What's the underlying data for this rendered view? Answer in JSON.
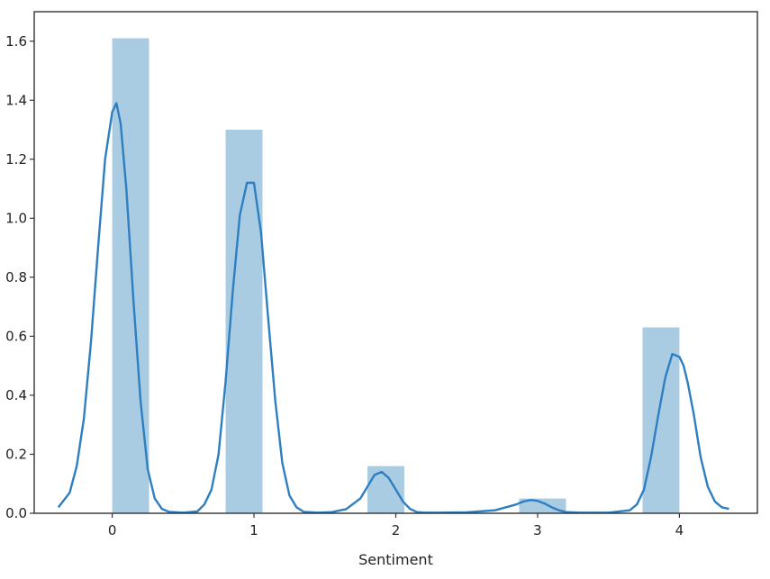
{
  "chart_data": {
    "type": "bar",
    "subtype": "histogram-with-kde",
    "title": "",
    "xlabel": "Sentiment",
    "ylabel": "",
    "xlim": [
      -0.55,
      4.55
    ],
    "ylim": [
      0,
      1.7
    ],
    "grid": false,
    "legend": "none",
    "x_ticks": [
      0,
      1,
      2,
      3,
      4
    ],
    "x_tick_labels": [
      "0",
      "1",
      "2",
      "3",
      "4"
    ],
    "y_ticks": [
      0.0,
      0.2,
      0.4,
      0.6,
      0.8,
      1.0,
      1.2,
      1.4,
      1.6
    ],
    "y_tick_labels": [
      "0.0",
      "0.2",
      "0.4",
      "0.6",
      "0.8",
      "1.0",
      "1.2",
      "1.4",
      "1.6"
    ],
    "bars": [
      {
        "x0": 0.0,
        "x1": 0.26,
        "value": 1.61
      },
      {
        "x0": 0.8,
        "x1": 1.06,
        "value": 1.3
      },
      {
        "x0": 1.8,
        "x1": 2.06,
        "value": 0.16
      },
      {
        "x0": 2.87,
        "x1": 3.2,
        "value": 0.05
      },
      {
        "x0": 3.74,
        "x1": 4.0,
        "value": 0.63
      }
    ],
    "kde": {
      "x": [
        -0.38,
        -0.3,
        -0.25,
        -0.2,
        -0.15,
        -0.1,
        -0.05,
        0.0,
        0.03,
        0.06,
        0.1,
        0.15,
        0.2,
        0.25,
        0.3,
        0.35,
        0.4,
        0.5,
        0.6,
        0.65,
        0.7,
        0.75,
        0.8,
        0.85,
        0.9,
        0.95,
        1.0,
        1.05,
        1.1,
        1.15,
        1.2,
        1.25,
        1.3,
        1.35,
        1.45,
        1.55,
        1.65,
        1.75,
        1.8,
        1.85,
        1.9,
        1.95,
        2.0,
        2.05,
        2.1,
        2.15,
        2.2,
        2.3,
        2.5,
        2.7,
        2.85,
        2.9,
        2.95,
        3.0,
        3.05,
        3.1,
        3.15,
        3.2,
        3.3,
        3.5,
        3.65,
        3.7,
        3.75,
        3.8,
        3.85,
        3.9,
        3.95,
        4.0,
        4.03,
        4.06,
        4.1,
        4.15,
        4.2,
        4.25,
        4.3,
        4.35
      ],
      "y": [
        0.02,
        0.07,
        0.16,
        0.32,
        0.58,
        0.9,
        1.2,
        1.36,
        1.39,
        1.32,
        1.1,
        0.72,
        0.38,
        0.15,
        0.05,
        0.015,
        0.005,
        0.002,
        0.006,
        0.03,
        0.08,
        0.2,
        0.45,
        0.75,
        1.01,
        1.12,
        1.12,
        0.95,
        0.66,
        0.38,
        0.17,
        0.06,
        0.02,
        0.005,
        0.002,
        0.004,
        0.014,
        0.05,
        0.09,
        0.13,
        0.14,
        0.12,
        0.08,
        0.04,
        0.015,
        0.004,
        0.002,
        0.002,
        0.003,
        0.01,
        0.03,
        0.04,
        0.045,
        0.042,
        0.033,
        0.02,
        0.01,
        0.004,
        0.002,
        0.002,
        0.01,
        0.03,
        0.08,
        0.19,
        0.33,
        0.46,
        0.54,
        0.53,
        0.5,
        0.44,
        0.34,
        0.19,
        0.09,
        0.04,
        0.02,
        0.015
      ]
    },
    "colors": {
      "bar_fill": "#a9cce3",
      "kde_line": "#2e7fc1",
      "axis": "#333333"
    }
  }
}
